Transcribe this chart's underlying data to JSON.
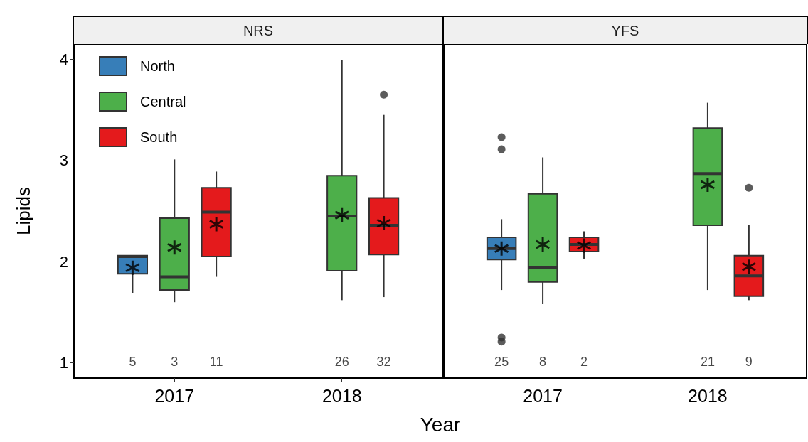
{
  "chart_data": [
    {
      "type": "box",
      "title": "NRS",
      "xlabel": "Year",
      "ylabel": "Lipids",
      "categories": [
        "2017",
        "2018"
      ],
      "ylim": [
        0.85,
        4.15
      ],
      "yticks": [
        1,
        2,
        3,
        4
      ],
      "legend": "top left",
      "grid": false,
      "series": [
        {
          "name": "North",
          "color": "#377eb8",
          "boxes": [
            {
              "low": 1.69,
              "q1": 1.88,
              "median": 2.05,
              "q3": 2.06,
              "high": 2.06,
              "mean": 1.94
            },
            null
          ],
          "value_labels": [
            "5",
            null
          ]
        },
        {
          "name": "Central",
          "color": "#4daf4a",
          "boxes": [
            {
              "low": 1.6,
              "q1": 1.72,
              "median": 1.85,
              "q3": 2.43,
              "high": 3.01,
              "mean": 2.14
            },
            {
              "low": 1.62,
              "q1": 1.91,
              "median": 2.45,
              "q3": 2.85,
              "high": 3.99,
              "mean": 2.46
            }
          ],
          "value_labels": [
            "3",
            "26"
          ]
        },
        {
          "name": "South",
          "color": "#e41a1c",
          "boxes": [
            {
              "low": 1.85,
              "q1": 2.05,
              "median": 2.49,
              "q3": 2.73,
              "high": 2.89,
              "mean": 2.37
            },
            {
              "low": 1.65,
              "q1": 2.07,
              "median": 2.36,
              "q3": 2.63,
              "high": 3.45,
              "mean": 2.38,
              "outliers": [
                3.65
              ]
            }
          ],
          "value_labels": [
            "11",
            "32"
          ]
        }
      ]
    },
    {
      "type": "box",
      "title": "YFS",
      "categories": [
        "2017",
        "2018"
      ],
      "ylim": [
        0.85,
        4.15
      ],
      "yticks": [
        1,
        2,
        3,
        4
      ],
      "tick_labels": "x",
      "grid": false,
      "series": [
        {
          "color": "#377eb8",
          "boxes": [
            {
              "low": 1.72,
              "q1": 2.02,
              "median": 2.13,
              "q3": 2.24,
              "high": 2.42,
              "mean": 2.13,
              "outliers": [
                3.23,
                3.11,
                1.25,
                1.21
              ]
            },
            null
          ],
          "value_labels": [
            "25",
            null
          ]
        },
        {
          "color": "#4daf4a",
          "boxes": [
            {
              "low": 1.58,
              "q1": 1.8,
              "median": 1.94,
              "q3": 2.67,
              "high": 3.03,
              "mean": 2.17
            },
            {
              "low": 1.72,
              "q1": 2.36,
              "median": 2.87,
              "q3": 3.32,
              "high": 3.57,
              "mean": 2.76
            }
          ],
          "value_labels": [
            "8",
            "21"
          ]
        },
        {
          "color": "#e41a1c",
          "boxes": [
            {
              "low": 2.03,
              "q1": 2.1,
              "median": 2.17,
              "q3": 2.24,
              "high": 2.3,
              "mean": 2.16
            },
            {
              "low": 1.62,
              "q1": 1.66,
              "median": 1.86,
              "q3": 2.06,
              "high": 2.36,
              "mean": 1.95,
              "outliers": [
                2.73
              ]
            }
          ],
          "value_labels": [
            "2",
            "9"
          ]
        }
      ]
    }
  ]
}
